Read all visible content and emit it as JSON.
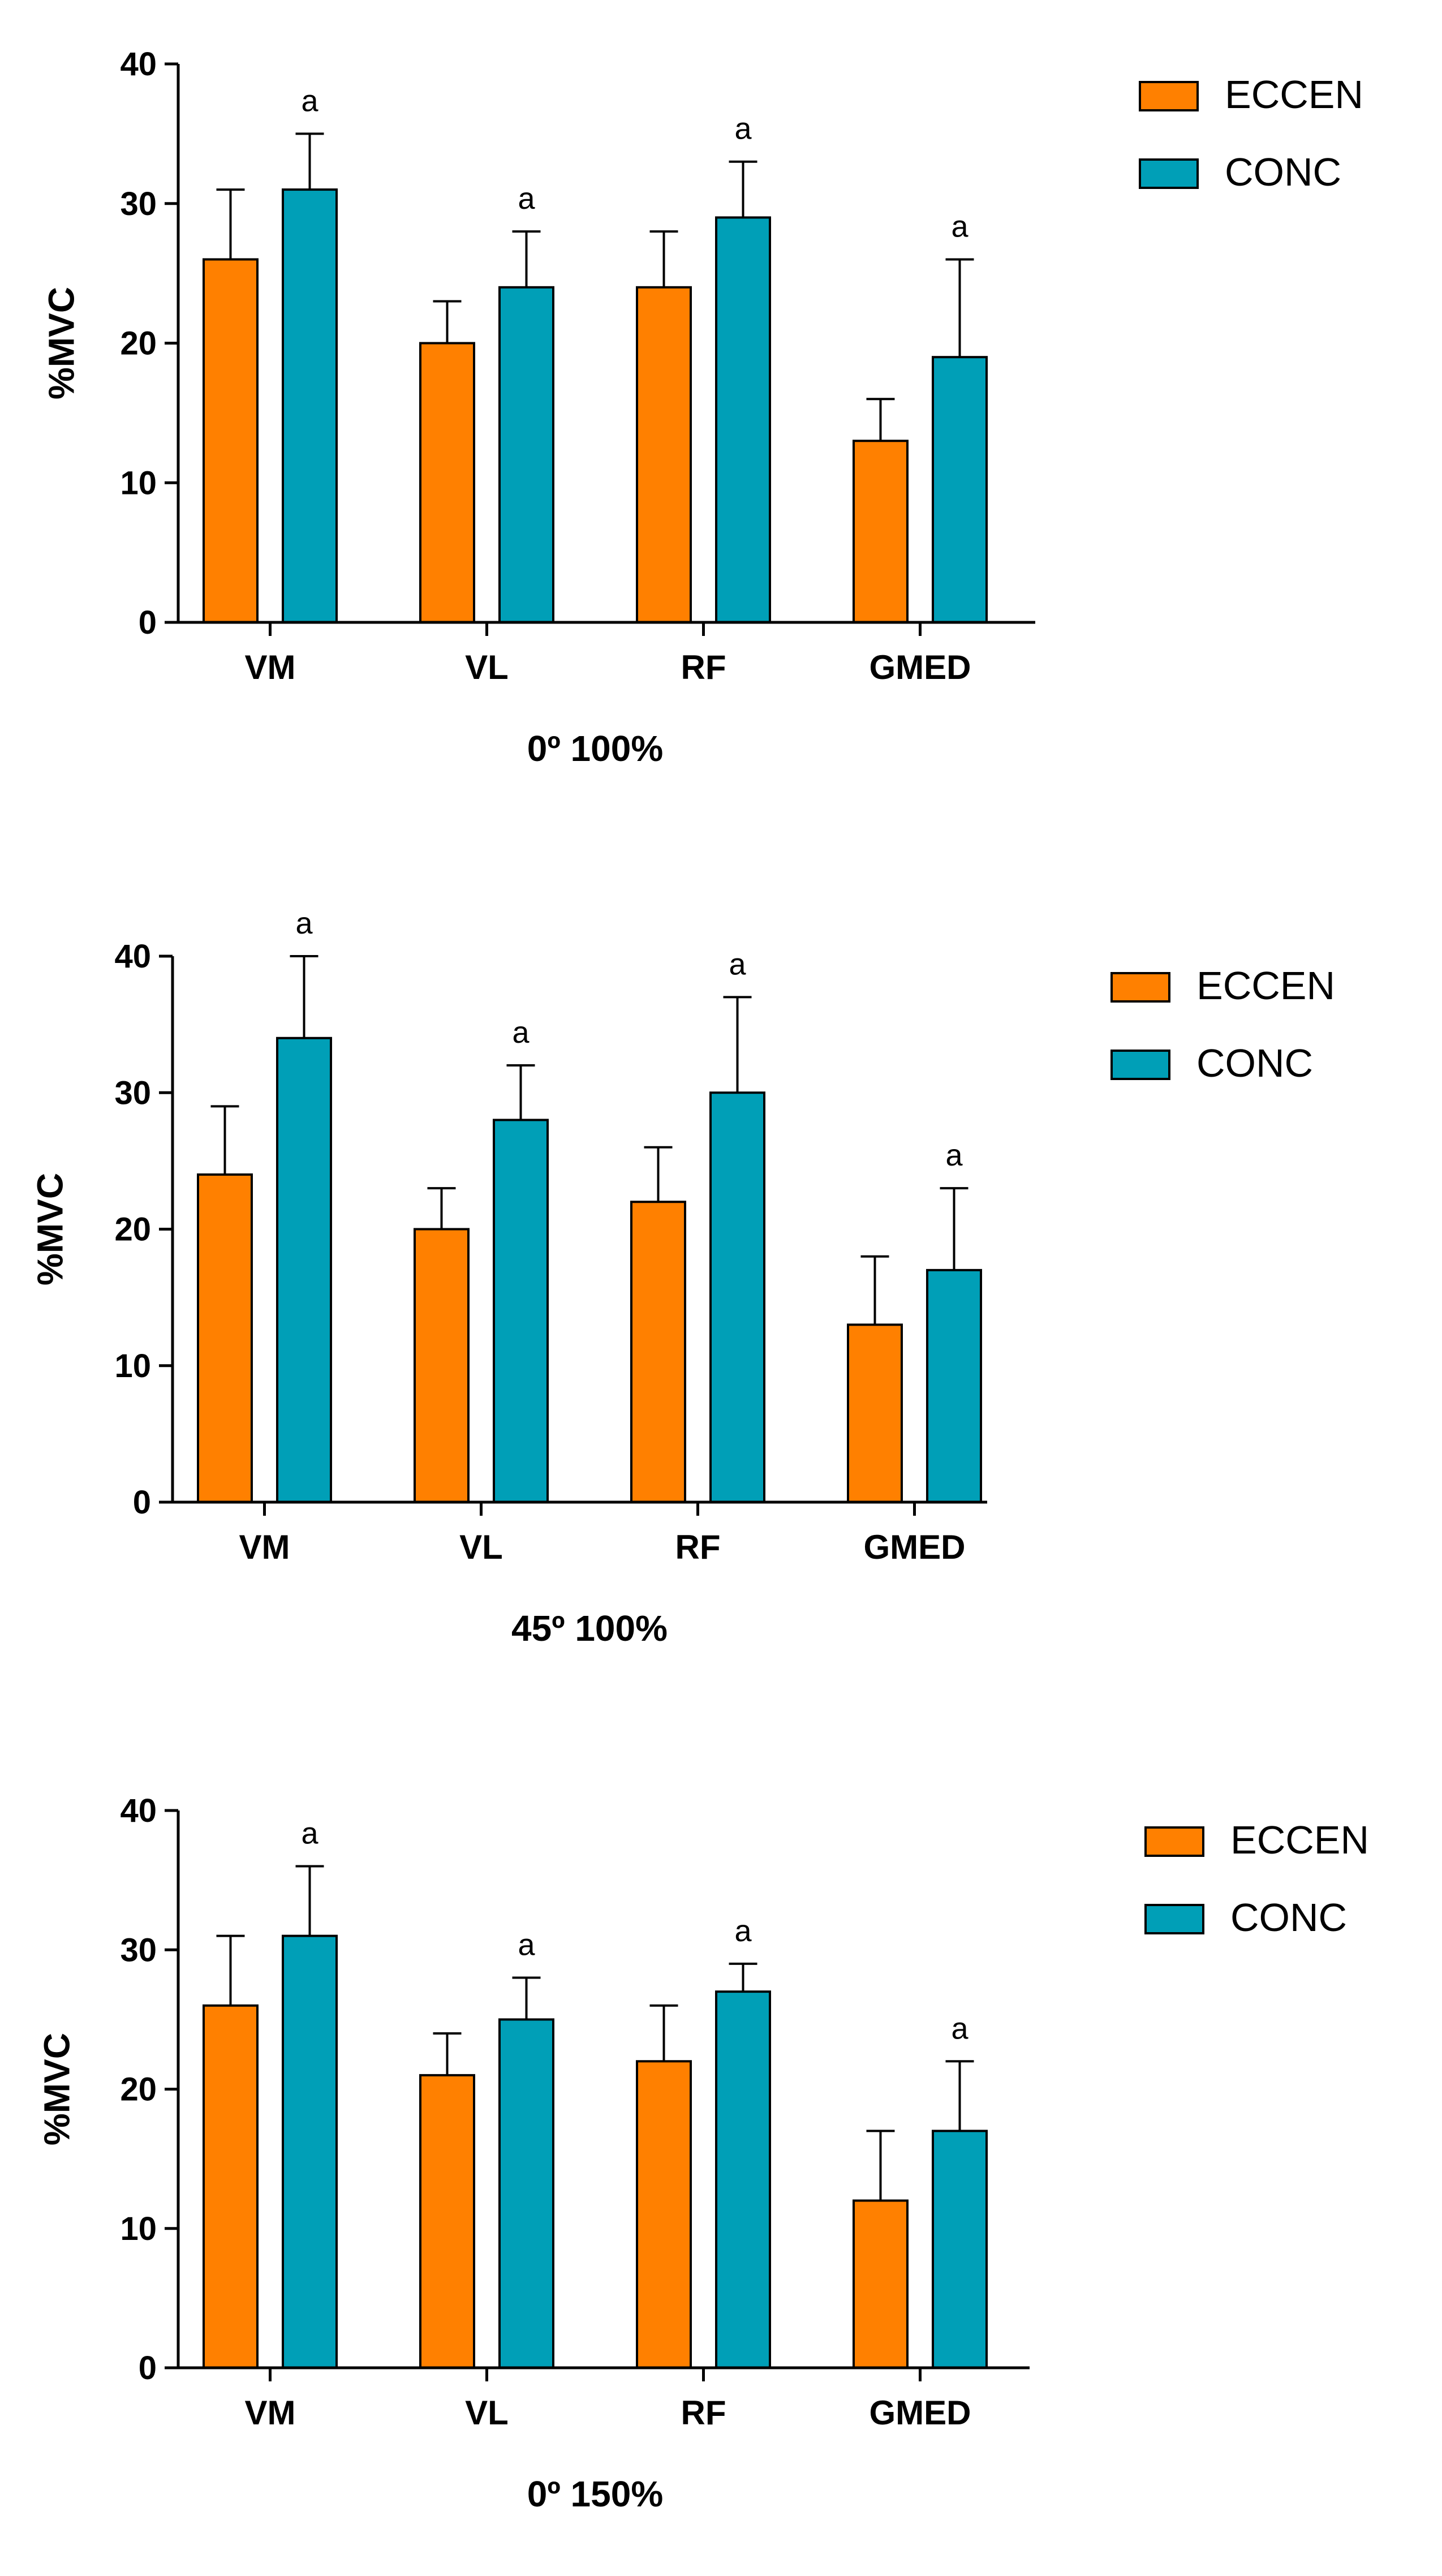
{
  "colors": {
    "eccen": "#ff8000",
    "conc": "#009fb7",
    "stroke": "#000000"
  },
  "chart_data": [
    {
      "type": "bar",
      "title": "",
      "xlabel": "0º 100%",
      "ylabel": "%MVC",
      "ylim": [
        0,
        40
      ],
      "yticks": [
        0,
        10,
        20,
        30,
        40
      ],
      "categories": [
        "VM",
        "VL",
        "RF",
        "GMED"
      ],
      "legend": "top-right",
      "series": [
        {
          "name": "ECCEN",
          "values": [
            26,
            20,
            24,
            13
          ],
          "errors": [
            5,
            3,
            4,
            3
          ]
        },
        {
          "name": "CONC",
          "values": [
            31,
            24,
            29,
            19
          ],
          "errors": [
            4,
            4,
            4,
            7
          ]
        }
      ],
      "annotations": [
        "a",
        "a",
        "a",
        "a"
      ]
    },
    {
      "type": "bar",
      "title": "",
      "xlabel": "45º 100%",
      "ylabel": "%MVC",
      "ylim": [
        0,
        40
      ],
      "yticks": [
        0,
        10,
        20,
        30,
        40
      ],
      "categories": [
        "VM",
        "VL",
        "RF",
        "GMED"
      ],
      "legend": "top-right",
      "series": [
        {
          "name": "ECCEN",
          "values": [
            24,
            20,
            22,
            13
          ],
          "errors": [
            5,
            3,
            4,
            5
          ]
        },
        {
          "name": "CONC",
          "values": [
            34,
            28,
            30,
            17
          ],
          "errors": [
            6,
            4,
            7,
            6
          ]
        }
      ],
      "annotations": [
        "a",
        "a",
        "a",
        "a"
      ]
    },
    {
      "type": "bar",
      "title": "",
      "xlabel": "0º 150%",
      "ylabel": "%MVC",
      "ylim": [
        0,
        40
      ],
      "yticks": [
        0,
        10,
        20,
        30,
        40
      ],
      "categories": [
        "VM",
        "VL",
        "RF",
        "GMED"
      ],
      "legend": "top-right",
      "series": [
        {
          "name": "ECCEN",
          "values": [
            26,
            21,
            22,
            12
          ],
          "errors": [
            5,
            3,
            4,
            5
          ]
        },
        {
          "name": "CONC",
          "values": [
            31,
            25,
            27,
            17
          ],
          "errors": [
            5,
            3,
            2,
            5
          ]
        }
      ],
      "annotations": [
        "a",
        "a",
        "a",
        "a"
      ]
    }
  ]
}
